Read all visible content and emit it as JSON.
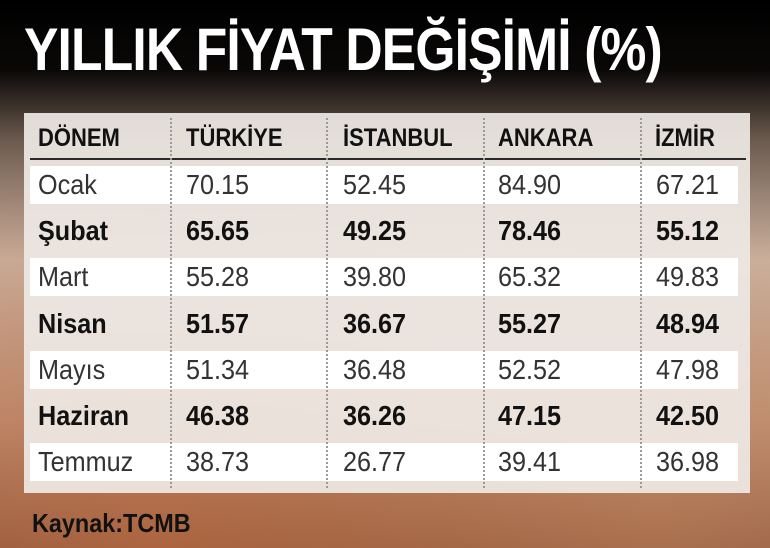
{
  "chart_data": {
    "type": "table",
    "title": "YILLIK FİYAT DEĞİŞİMİ (%)",
    "columns": [
      "DÖNEM",
      "TÜRKİYE",
      "İSTANBUL",
      "ANKARA",
      "İZMİR"
    ],
    "rows": [
      [
        "Ocak",
        "70.15",
        "52.45",
        "84.90",
        "67.21"
      ],
      [
        "Şubat",
        "65.65",
        "49.25",
        "78.46",
        "55.12"
      ],
      [
        "Mart",
        "55.28",
        "39.80",
        "65.32",
        "49.83"
      ],
      [
        "Nisan",
        "51.57",
        "36.67",
        "55.27",
        "48.94"
      ],
      [
        "Mayıs",
        "51.34",
        "36.48",
        "52.52",
        "47.98"
      ],
      [
        "Haziran",
        "46.38",
        "36.26",
        "47.15",
        "42.50"
      ],
      [
        "Temmuz",
        "38.73",
        "26.77",
        "39.41",
        "36.98"
      ]
    ],
    "source": "Kaynak:TCMB"
  },
  "colors": {
    "title": "#ffffff",
    "header_text": "#111111",
    "row_light": "#ffffff",
    "row_bold_text": "#111111",
    "row_light_text": "#333333"
  }
}
